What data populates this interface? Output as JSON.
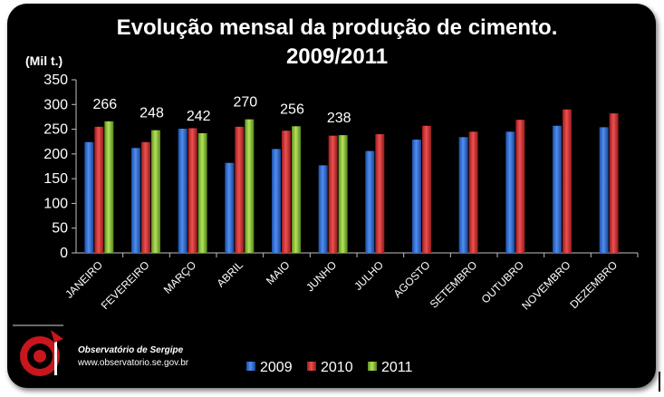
{
  "chart_data": {
    "type": "bar",
    "title": "Evolução mensal da produção de cimento.",
    "subtitle": "2009/2011",
    "ylabel": "(Mil t.)",
    "xlabel": "",
    "ylim": [
      0,
      350
    ],
    "yticks": [
      0,
      50,
      100,
      150,
      200,
      250,
      300,
      350
    ],
    "grid": false,
    "legend_position": "bottom",
    "categories": [
      "JANEIRO",
      "FEVEREIRO",
      "MARÇO",
      "ABRIL",
      "MAIO",
      "JUNHO",
      "JULHO",
      "AGOSTO",
      "SETEMBRO",
      "OUTUBRO",
      "NOVEMBRO",
      "DEZEMBRO"
    ],
    "series": [
      {
        "name": "2009",
        "color": "#2e6fd6",
        "values": [
          224,
          212,
          251,
          182,
          210,
          177,
          206,
          229,
          234,
          245,
          257,
          254
        ]
      },
      {
        "name": "2010",
        "color": "#d42f2f",
        "values": [
          255,
          224,
          252,
          255,
          247,
          237,
          240,
          257,
          245,
          269,
          290,
          282
        ]
      },
      {
        "name": "2011",
        "color": "#8fc63a",
        "values": [
          266,
          248,
          242,
          270,
          256,
          238,
          null,
          null,
          null,
          null,
          null,
          null
        ]
      }
    ],
    "data_labels": [
      {
        "category": "JANEIRO",
        "series": "2011",
        "value": "266"
      },
      {
        "category": "FEVEREIRO",
        "series": "2011",
        "value": "248"
      },
      {
        "category": "MARÇO",
        "series": "2011",
        "value": "242"
      },
      {
        "category": "ABRIL",
        "series": "2011",
        "value": "270"
      },
      {
        "category": "MAIO",
        "series": "2011",
        "value": "256"
      },
      {
        "category": "JUNHO",
        "series": "2011",
        "value": "238"
      }
    ]
  },
  "footer": {
    "org_name": "Observatório de Sergipe",
    "org_url": "www.observatorio.se.gov.br",
    "logo_icon": "observatorio-target-logo-icon"
  }
}
